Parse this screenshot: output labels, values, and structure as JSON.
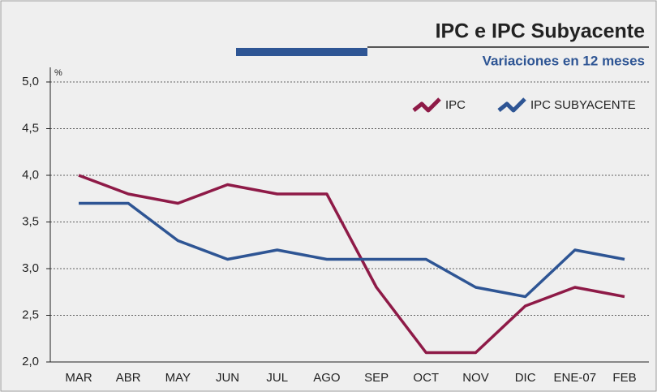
{
  "chart_data": {
    "type": "line",
    "title": "IPC e IPC Subyacente",
    "subtitle": "Variaciones en 12 meses",
    "y_unit": "%",
    "categories": [
      "MAR",
      "ABR",
      "MAY",
      "JUN",
      "JUL",
      "AGO",
      "SEP",
      "OCT",
      "NOV",
      "DIC",
      "ENE-07",
      "FEB"
    ],
    "series": [
      {
        "name": "IPC",
        "color": "#8e1a47",
        "values": [
          4.0,
          3.8,
          3.7,
          3.9,
          3.8,
          3.8,
          2.8,
          2.1,
          2.1,
          2.6,
          2.8,
          2.7
        ]
      },
      {
        "name": "IPC SUBYACENTE",
        "color": "#2e5594",
        "values": [
          3.7,
          3.7,
          3.3,
          3.1,
          3.2,
          3.1,
          3.1,
          3.1,
          2.8,
          2.7,
          3.2,
          3.1
        ]
      }
    ],
    "ylim": [
      2,
      5
    ],
    "yticks": [
      {
        "value": 2,
        "label": "2,0"
      },
      {
        "value": 2.5,
        "label": "2,5"
      },
      {
        "value": 3,
        "label": "3,0"
      },
      {
        "value": 3.5,
        "label": "3,5"
      },
      {
        "value": 4,
        "label": "4,0"
      },
      {
        "value": 4.5,
        "label": "4,5"
      },
      {
        "value": 5,
        "label": "5,0"
      }
    ],
    "grid": true,
    "legend": "top-right"
  }
}
